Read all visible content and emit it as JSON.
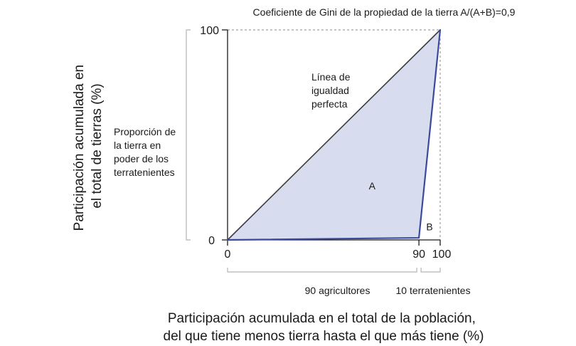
{
  "chart_data": {
    "type": "line",
    "title": "Coeficiente de Gini de la propiedad de la tierra A/(A+B)=0,9",
    "xlabel_lines": [
      "Participación acumulada en el total de la población,",
      "del que tiene menos tierra hasta el que más tiene (%)"
    ],
    "ylabel_lines": [
      "Participación acumulada en",
      "el total de tierras (%)"
    ],
    "xlim": [
      0,
      100
    ],
    "ylim": [
      0,
      100
    ],
    "x_ticks": [
      "0",
      "90",
      "100"
    ],
    "y_ticks": [
      "0",
      "100"
    ],
    "grid": false,
    "series": [
      {
        "name": "",
        "x": [
          0,
          100
        ],
        "y": [
          0,
          100
        ],
        "color": "#3d3d3d"
      },
      {
        "name": "",
        "x": [
          0,
          90,
          100
        ],
        "y": [
          0,
          1,
          100
        ],
        "color": "#3b4a9a"
      }
    ],
    "area_fill": "#d7dcef",
    "annotations": {
      "equality_line_lines": [
        "Línea de",
        "igualdad",
        "perfecta"
      ],
      "landlord_share_lines": [
        "Proporción de",
        "la tierra en",
        "poder de los",
        "terratenientes"
      ],
      "area_a": "A",
      "area_b": "B"
    },
    "groups": [
      {
        "label": "90 agricultores",
        "from": 0,
        "to": 90
      },
      {
        "label": "10 terratenientes",
        "from": 90,
        "to": 100
      }
    ]
  }
}
